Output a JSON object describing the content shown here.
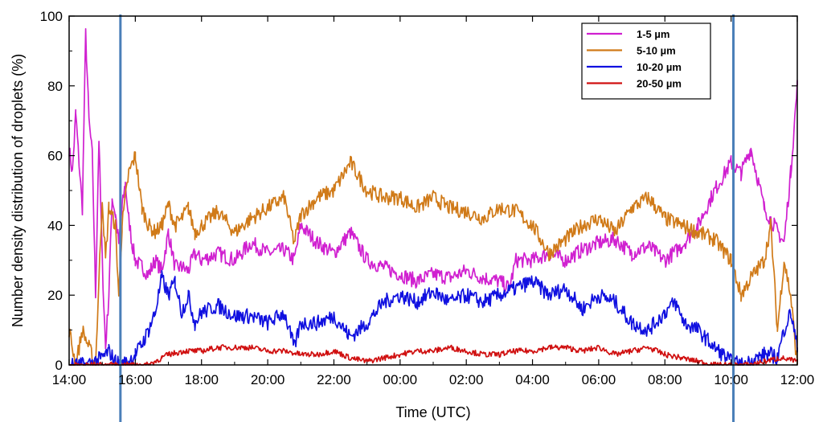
{
  "chart_data": {
    "type": "line",
    "xlabel": "Time (UTC)",
    "ylabel": "Number density distribution of droplets (%)",
    "x_ticks": [
      "14:00",
      "16:00",
      "18:00",
      "20:00",
      "22:00",
      "00:00",
      "02:00",
      "04:00",
      "06:00",
      "08:00",
      "10:00",
      "12:00"
    ],
    "x_range_hours": [
      0,
      22
    ],
    "ylim": [
      0,
      100
    ],
    "y_ticks": [
      "0",
      "20",
      "40",
      "60",
      "80",
      "100"
    ],
    "grid": false,
    "legend_position": "top-right",
    "markers_hours_since_14_00": [
      1.55,
      20.07
    ],
    "marker_color": "#4a7fb8",
    "series": [
      {
        "name": "1-5 µm",
        "color": "#d020d0",
        "x": [
          0,
          0.1,
          0.2,
          0.3,
          0.4,
          0.5,
          0.6,
          0.7,
          0.8,
          0.9,
          1.0,
          1.1,
          1.2,
          1.3,
          1.4,
          1.5,
          1.6,
          1.7,
          1.8,
          1.9,
          2.0,
          2.2,
          2.4,
          2.6,
          2.8,
          3.0,
          3.2,
          3.4,
          3.6,
          3.8,
          4.0,
          4.5,
          5.0,
          5.5,
          6.0,
          6.5,
          6.8,
          7.0,
          7.5,
          8.0,
          8.5,
          9.0,
          9.5,
          10.0,
          10.5,
          11.0,
          11.5,
          12.0,
          12.5,
          13.0,
          13.3,
          13.5,
          14.0,
          14.5,
          15.0,
          15.5,
          16.0,
          16.5,
          17.0,
          17.5,
          18.0,
          18.5,
          19.0,
          19.5,
          20.0,
          20.3,
          20.6,
          21.0,
          21.3,
          21.6,
          21.8,
          22.0
        ],
        "y": [
          62,
          55,
          72,
          58,
          45,
          95,
          70,
          60,
          20,
          65,
          30,
          5,
          20,
          48,
          43,
          35,
          45,
          52,
          42,
          35,
          30,
          28,
          26,
          30,
          27,
          38,
          28,
          28,
          27,
          32,
          30,
          32,
          30,
          35,
          32,
          33,
          30,
          40,
          35,
          32,
          38,
          30,
          28,
          26,
          24,
          26,
          25,
          27,
          25,
          24,
          22,
          30,
          30,
          32,
          30,
          33,
          35,
          36,
          32,
          34,
          30,
          34,
          40,
          50,
          58,
          55,
          62,
          45,
          40,
          35,
          55,
          80
        ]
      },
      {
        "name": "5-10 µm",
        "color": "#d07a18",
        "x": [
          0,
          0.2,
          0.4,
          0.6,
          0.8,
          1.0,
          1.1,
          1.2,
          1.4,
          1.5,
          1.6,
          1.8,
          2.0,
          2.2,
          2.4,
          2.6,
          2.8,
          3.0,
          3.2,
          3.4,
          3.6,
          3.8,
          4.0,
          4.5,
          5.0,
          5.5,
          6.0,
          6.5,
          6.8,
          7.0,
          7.5,
          8.0,
          8.5,
          9.0,
          9.5,
          10.0,
          10.5,
          11.0,
          11.5,
          12.0,
          12.5,
          13.0,
          13.5,
          14.0,
          14.5,
          15.0,
          15.5,
          16.0,
          16.5,
          17.0,
          17.5,
          18.0,
          18.5,
          19.0,
          19.5,
          20.0,
          20.3,
          20.6,
          21.0,
          21.2,
          21.4,
          21.6,
          21.8,
          22.0
        ],
        "y": [
          10,
          0,
          10,
          5,
          0,
          48,
          30,
          45,
          40,
          20,
          40,
          55,
          60,
          45,
          40,
          38,
          40,
          46,
          40,
          42,
          45,
          38,
          40,
          44,
          38,
          42,
          45,
          48,
          35,
          43,
          48,
          50,
          58,
          50,
          48,
          48,
          45,
          48,
          45,
          44,
          42,
          45,
          44,
          40,
          32,
          36,
          40,
          42,
          38,
          45,
          48,
          42,
          40,
          38,
          36,
          30,
          20,
          25,
          30,
          40,
          10,
          30,
          20,
          0
        ]
      },
      {
        "name": "10-20 µm",
        "color": "#1010e0",
        "x": [
          0,
          0.5,
          1.0,
          1.2,
          1.4,
          1.6,
          1.8,
          2.0,
          2.2,
          2.4,
          2.6,
          2.8,
          3.0,
          3.2,
          3.4,
          3.6,
          3.8,
          4.0,
          4.5,
          5.0,
          5.5,
          6.0,
          6.5,
          6.8,
          7.0,
          7.5,
          8.0,
          8.5,
          9.0,
          9.5,
          10.0,
          10.5,
          11.0,
          11.5,
          12.0,
          12.5,
          13.0,
          13.5,
          14.0,
          14.5,
          15.0,
          15.5,
          16.0,
          16.5,
          17.0,
          17.5,
          18.0,
          18.3,
          18.6,
          19.0,
          19.5,
          20.0,
          20.3,
          20.6,
          21.0,
          21.2,
          21.4,
          21.6,
          21.8,
          22.0
        ],
        "y": [
          0,
          0,
          2,
          4,
          1,
          0,
          1,
          3,
          6,
          10,
          15,
          25,
          20,
          24,
          15,
          20,
          12,
          15,
          17,
          14,
          14,
          12,
          15,
          5,
          12,
          12,
          14,
          8,
          12,
          18,
          20,
          18,
          21,
          18,
          20,
          18,
          20,
          22,
          24,
          20,
          22,
          16,
          20,
          18,
          12,
          10,
          15,
          18,
          12,
          10,
          5,
          1,
          0,
          1,
          3,
          3,
          2,
          10,
          15,
          5
        ]
      },
      {
        "name": "20-50 µm",
        "color": "#d01010",
        "x": [
          0,
          0.5,
          1.0,
          1.5,
          2.0,
          2.2,
          2.4,
          2.6,
          2.8,
          3.0,
          3.5,
          4.0,
          4.5,
          5.0,
          5.5,
          6.0,
          6.5,
          7.0,
          7.5,
          8.0,
          8.5,
          9.0,
          9.5,
          10.0,
          10.5,
          11.0,
          11.5,
          12.0,
          12.5,
          13.0,
          13.5,
          14.0,
          14.5,
          15.0,
          15.5,
          16.0,
          16.5,
          17.0,
          17.5,
          18.0,
          18.5,
          19.0,
          19.5,
          20.0,
          20.5,
          21.0,
          21.5,
          22.0
        ],
        "y": [
          0,
          0,
          0,
          0,
          0,
          0,
          0,
          1,
          2,
          3,
          4,
          4,
          5,
          5,
          5,
          4,
          4,
          3,
          3,
          4,
          2,
          1,
          2,
          3,
          4,
          4,
          5,
          4,
          3,
          3,
          4,
          4,
          5,
          5,
          4,
          5,
          3,
          4,
          5,
          3,
          2,
          1,
          0,
          0,
          0,
          1,
          2,
          1
        ]
      }
    ]
  }
}
